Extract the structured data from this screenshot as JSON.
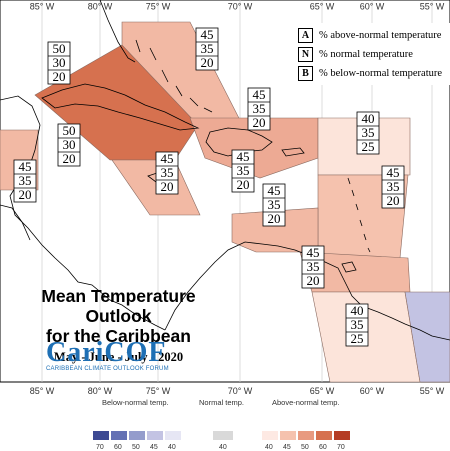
{
  "longitudes": [
    "85° W",
    "80° W",
    "75° W",
    "70° W",
    "65° W",
    "60° W",
    "55° W"
  ],
  "legend": {
    "above": {
      "key": "A",
      "label": "% above-normal temperature"
    },
    "normal": {
      "key": "N",
      "label": "% normal temperature"
    },
    "below": {
      "key": "B",
      "label": "% below-normal temperature"
    }
  },
  "regions": [
    {
      "id": "cuba",
      "above": "50",
      "normal": "30",
      "below": "20",
      "color": "#d6714f"
    },
    {
      "id": "cuba-north",
      "above": "50",
      "normal": "30",
      "below": "20",
      "color": "#d6714f"
    },
    {
      "id": "bahamas",
      "above": "45",
      "normal": "35",
      "below": "20",
      "color": "#f2b9a4"
    },
    {
      "id": "hispaniola",
      "above": "45",
      "normal": "35",
      "below": "20",
      "color": "#edaa94"
    },
    {
      "id": "jamaica",
      "above": "45",
      "normal": "35",
      "below": "20",
      "color": "#f2b9a4"
    },
    {
      "id": "puerto-rico",
      "above": "45",
      "normal": "35",
      "below": "20",
      "color": "#f2b9a4"
    },
    {
      "id": "belize",
      "above": "45",
      "normal": "35",
      "below": "20",
      "color": "#f2b9a4"
    },
    {
      "id": "leeward",
      "above": "40",
      "normal": "35",
      "below": "25",
      "color": "#fce4da"
    },
    {
      "id": "windward",
      "above": "45",
      "normal": "35",
      "below": "20",
      "color": "#f5c2ae"
    },
    {
      "id": "abc-islands",
      "above": "45",
      "normal": "35",
      "below": "20",
      "color": "#f2b9a4"
    },
    {
      "id": "trinidad",
      "above": "45",
      "normal": "35",
      "below": "20",
      "color": "#f2b9a4"
    },
    {
      "id": "guianas",
      "above": "40",
      "normal": "35",
      "below": "25",
      "color": "#fce4da"
    },
    {
      "id": "suriname-east",
      "color": "#c3c3e3"
    }
  ],
  "title": {
    "line1": "Mean Temperature Outlook",
    "line2": "for the Caribbean",
    "period": "May - June - July - 2020"
  },
  "logo": {
    "name": "CariCOF",
    "tagline": "CARIBBEAN CLIMATE OUTLOOK FORUM"
  },
  "scale": {
    "below_label": "Below-normal temp.",
    "normal_label": "Normal temp.",
    "above_label": "Above-normal temp.",
    "below_values": [
      "70",
      "60",
      "50",
      "45",
      "40"
    ],
    "normal_value": "40",
    "above_values": [
      "40",
      "45",
      "50",
      "60",
      "70"
    ],
    "below_colors": [
      "#3d4a93",
      "#6471b4",
      "#949ccc",
      "#c3c3e3",
      "#e6e6f4"
    ],
    "normal_color": "#d9d9d9",
    "above_colors": [
      "#fde9e3",
      "#f5c2ae",
      "#e89a80",
      "#d6714f",
      "#b53c24"
    ]
  }
}
